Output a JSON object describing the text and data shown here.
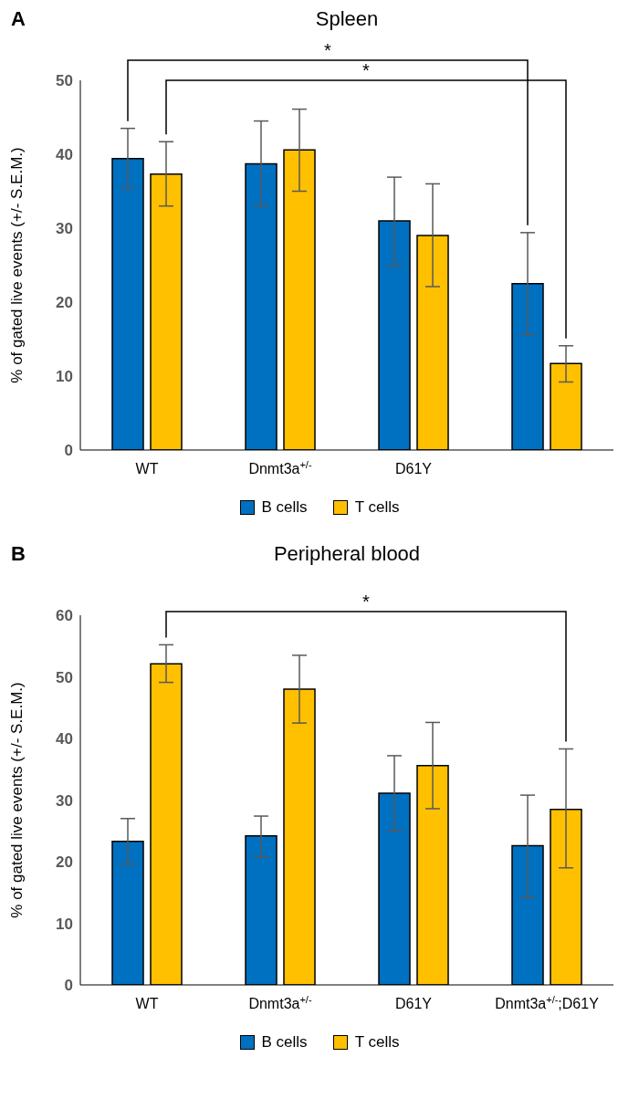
{
  "chart_data": [
    {
      "type": "bar",
      "title": "Spleen",
      "ylabel": "% of gated live events (+/- S.E.M.)",
      "annotations": [
        "A",
        "*",
        "*"
      ],
      "categories": [
        "WT",
        "Dnmt3a$^{+/-}$",
        "D61Y",
        null
      ],
      "series": [
        {
          "name": "B cells",
          "color": "#0070c0",
          "values": [
            39.4,
            38.7,
            31.0,
            22.5
          ],
          "errors": [
            [
              35.4,
              43.5
            ],
            [
              33.0,
              44.5
            ],
            [
              24.9,
              36.9
            ],
            [
              15.6,
              29.4
            ]
          ]
        },
        {
          "name": "T cells",
          "color": "#ffc000",
          "values": [
            37.3,
            40.6,
            29.0,
            11.7
          ],
          "errors": [
            [
              33.0,
              41.7
            ],
            [
              35.0,
              46.1
            ],
            [
              22.1,
              36.0
            ],
            [
              9.2,
              14.1
            ]
          ]
        }
      ],
      "ylim": [
        0,
        50
      ],
      "yticks": [
        0,
        10,
        20,
        30,
        40,
        50
      ],
      "grid": false,
      "legend": "bottom"
    },
    {
      "type": "bar",
      "title": "Peripheral blood",
      "ylabel": "% of gated live events (+/- S.E.M.)",
      "annotations": [
        "B",
        "*"
      ],
      "categories": [
        "WT",
        "Dnmt3a$^{+/-}$",
        "D61Y",
        "Dnmt3a$^{+/-}$;D61Y"
      ],
      "series": [
        {
          "name": "B cells",
          "color": "#0070c0",
          "values": [
            23.3,
            24.2,
            31.1,
            22.6
          ],
          "errors": [
            [
              19.6,
              27.0
            ],
            [
              20.7,
              27.4
            ],
            [
              25.0,
              37.2
            ],
            [
              14.2,
              30.8
            ]
          ]
        },
        {
          "name": "T cells",
          "color": "#ffc000",
          "values": [
            52.1,
            48.0,
            35.6,
            28.5
          ],
          "errors": [
            [
              49.1,
              55.2
            ],
            [
              42.5,
              53.5
            ],
            [
              28.6,
              42.6
            ],
            [
              19.0,
              38.3
            ]
          ]
        }
      ],
      "ylim": [
        0,
        60
      ],
      "yticks": [
        0,
        10,
        20,
        30,
        40,
        50,
        60
      ],
      "grid": false,
      "legend": "bottom"
    }
  ]
}
